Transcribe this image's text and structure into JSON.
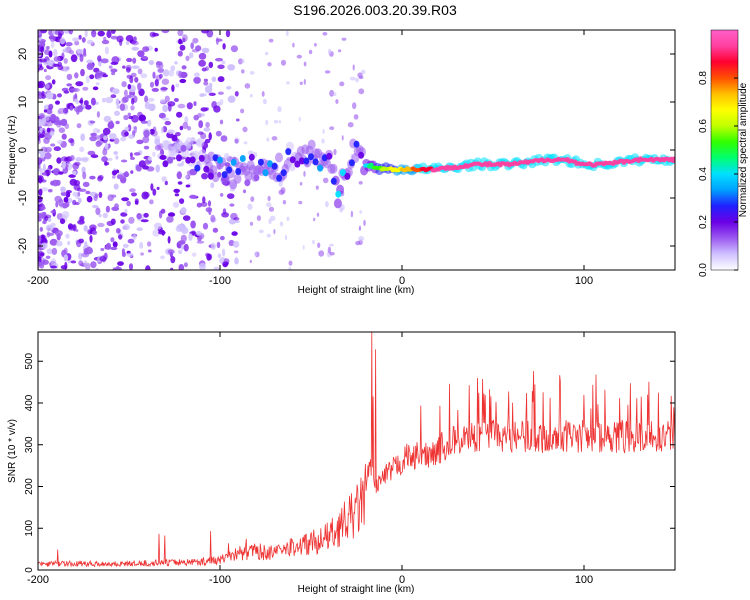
{
  "title": "S196.2026.003.20.39.R03",
  "colors": {
    "line": "#ee3333",
    "axis": "#000000",
    "colorbar_stops": [
      "#ffffff",
      "#cfc0ff",
      "#9b59f0",
      "#6a00e6",
      "#2020ff",
      "#00a0ff",
      "#00e0ff",
      "#00ff70",
      "#30ff00",
      "#c0ff00",
      "#ffff00",
      "#ffc000",
      "#ff5000",
      "#ff0030",
      "#ff40a0",
      "#ff60c8"
    ]
  },
  "chart_data": [
    {
      "type": "heatmap",
      "title": "S196.2026.003.20.39.R03",
      "xlabel": "Height of straight line (km)",
      "ylabel": "Frequency (Hz)",
      "xlim": [
        -200,
        150
      ],
      "ylim": [
        -25,
        25
      ],
      "x_ticks": [
        "-200",
        "-100",
        "0",
        "100"
      ],
      "y_ticks": [
        "20",
        "10",
        "0",
        "-10",
        "-20"
      ],
      "colorbar": {
        "label": "Normalized spectral amplitude",
        "range": [
          0.0,
          1.0
        ],
        "ticks": [
          "0.0",
          "0.2",
          "0.4",
          "0.6",
          "0.8"
        ]
      },
      "ridge": {
        "x": [
          -130,
          -110,
          -100,
          -90,
          -80,
          -70,
          -60,
          -50,
          -40,
          -35,
          -30,
          -25,
          -20,
          -10,
          0,
          20,
          40,
          60,
          80,
          90,
          100,
          110,
          130,
          150
        ],
        "freq": [
          0,
          -1,
          -4,
          -5,
          -3,
          -5,
          -1,
          -1,
          -2,
          -9,
          -3,
          0,
          -3,
          -4,
          -4,
          -4,
          -3,
          -3,
          -2,
          -2,
          -3,
          -3,
          -2,
          -2
        ],
        "amplitude": [
          0.2,
          0.2,
          0.3,
          0.3,
          0.25,
          0.3,
          0.2,
          0.3,
          0.3,
          0.4,
          0.3,
          0.3,
          0.4,
          0.6,
          0.7,
          0.95,
          0.95,
          0.95,
          0.95,
          0.9,
          0.95,
          0.95,
          0.95,
          0.95
        ]
      }
    },
    {
      "type": "line",
      "xlabel": "Height of straight line (km)",
      "ylabel": "SNR (10 * v/v)",
      "xlim": [
        -200,
        150
      ],
      "ylim": [
        0,
        570
      ],
      "x_ticks": [
        "-200",
        "-100",
        "0",
        "100"
      ],
      "y_ticks": [
        "0",
        "100",
        "200",
        "300",
        "400",
        "500"
      ],
      "series": [
        {
          "name": "SNR",
          "x": [
            -200,
            -150,
            -110,
            -100,
            -90,
            -80,
            -70,
            -60,
            -50,
            -40,
            -35,
            -30,
            -25,
            -20,
            -18,
            -15,
            -10,
            -5,
            0,
            5,
            10,
            20,
            30,
            40,
            60,
            80,
            100,
            120,
            140,
            150
          ],
          "values": [
            15,
            15,
            20,
            25,
            40,
            45,
            40,
            55,
            65,
            80,
            100,
            120,
            140,
            180,
            250,
            200,
            220,
            240,
            260,
            280,
            270,
            290,
            310,
            320,
            320,
            320,
            320,
            320,
            320,
            320
          ]
        }
      ]
    }
  ]
}
